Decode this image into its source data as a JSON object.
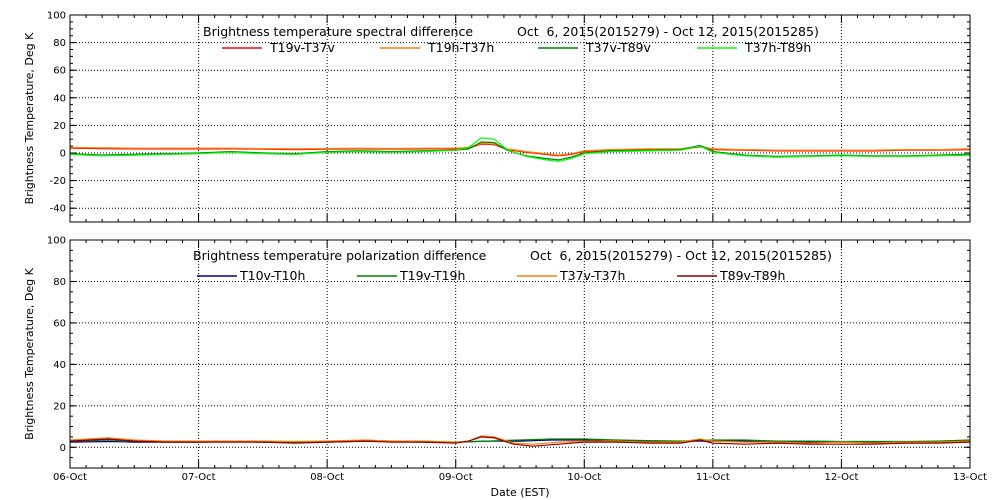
{
  "chart_data": [
    {
      "type": "line",
      "title": "Brightness temperature spectral difference",
      "date_range": "Oct  6, 2015(2015279) - Oct 12, 2015(2015285)",
      "ylabel": "Brightness Temperature, Deg K",
      "xlabel": "",
      "ylim": [
        -50,
        100
      ],
      "yticks": [
        -40,
        -20,
        0,
        20,
        40,
        60,
        80,
        100
      ],
      "xlim": [
        0,
        7
      ],
      "grid": true,
      "legend_placement": "top",
      "series": [
        {
          "name": "T19v-T37v",
          "color": "#ff0000",
          "points": [
            [
              0.0,
              3.5
            ],
            [
              0.25,
              3.2
            ],
            [
              0.5,
              3.0
            ],
            [
              0.75,
              3.0
            ],
            [
              1.0,
              3.0
            ],
            [
              1.25,
              3.0
            ],
            [
              1.5,
              2.8
            ],
            [
              1.75,
              2.5
            ],
            [
              2.0,
              2.8
            ],
            [
              2.25,
              3.0
            ],
            [
              2.5,
              2.8
            ],
            [
              2.75,
              3.0
            ],
            [
              3.0,
              3.0
            ],
            [
              3.1,
              3.5
            ],
            [
              3.2,
              6.5
            ],
            [
              3.3,
              6.0
            ],
            [
              3.4,
              2.5
            ],
            [
              3.55,
              0.5
            ],
            [
              3.7,
              -1.0
            ],
            [
              3.8,
              -2.0
            ],
            [
              3.9,
              -1.0
            ],
            [
              4.0,
              1.0
            ],
            [
              4.2,
              2.0
            ],
            [
              4.5,
              2.5
            ],
            [
              4.75,
              2.5
            ],
            [
              4.9,
              4.5
            ],
            [
              5.0,
              2.5
            ],
            [
              5.25,
              2.0
            ],
            [
              5.5,
              1.5
            ],
            [
              5.75,
              1.5
            ],
            [
              6.0,
              1.5
            ],
            [
              6.25,
              1.5
            ],
            [
              6.5,
              2.0
            ],
            [
              6.75,
              2.0
            ],
            [
              7.0,
              2.5
            ]
          ]
        },
        {
          "name": "T19h-T37h",
          "color": "#ff7f00",
          "points": [
            [
              0.0,
              4.0
            ],
            [
              0.25,
              3.8
            ],
            [
              0.5,
              3.5
            ],
            [
              0.75,
              3.5
            ],
            [
              1.0,
              3.5
            ],
            [
              1.25,
              3.5
            ],
            [
              1.5,
              3.2
            ],
            [
              1.75,
              3.0
            ],
            [
              2.0,
              3.2
            ],
            [
              2.25,
              3.5
            ],
            [
              2.5,
              3.2
            ],
            [
              2.75,
              3.5
            ],
            [
              3.0,
              3.5
            ],
            [
              3.1,
              4.0
            ],
            [
              3.2,
              7.0
            ],
            [
              3.3,
              6.5
            ],
            [
              3.4,
              3.0
            ],
            [
              3.55,
              1.0
            ],
            [
              3.7,
              -0.5
            ],
            [
              3.8,
              -1.5
            ],
            [
              3.9,
              -0.5
            ],
            [
              4.0,
              1.5
            ],
            [
              4.2,
              2.5
            ],
            [
              4.5,
              3.0
            ],
            [
              4.75,
              3.0
            ],
            [
              4.9,
              5.0
            ],
            [
              5.0,
              3.0
            ],
            [
              5.25,
              2.5
            ],
            [
              5.5,
              2.0
            ],
            [
              5.75,
              2.0
            ],
            [
              6.0,
              2.0
            ],
            [
              6.25,
              2.0
            ],
            [
              6.5,
              2.5
            ],
            [
              6.75,
              2.5
            ],
            [
              7.0,
              3.0
            ]
          ]
        },
        {
          "name": "T37v-T89v",
          "color": "#008000",
          "points": [
            [
              0.0,
              -0.5
            ],
            [
              0.25,
              -1.5
            ],
            [
              0.5,
              -1.0
            ],
            [
              0.75,
              -0.5
            ],
            [
              1.0,
              0.0
            ],
            [
              1.25,
              1.0
            ],
            [
              1.5,
              0.0
            ],
            [
              1.75,
              -0.5
            ],
            [
              2.0,
              1.0
            ],
            [
              2.25,
              1.5
            ],
            [
              2.5,
              1.0
            ],
            [
              2.75,
              1.5
            ],
            [
              3.0,
              2.0
            ],
            [
              3.1,
              3.0
            ],
            [
              3.2,
              8.0
            ],
            [
              3.3,
              7.5
            ],
            [
              3.4,
              2.0
            ],
            [
              3.55,
              -2.0
            ],
            [
              3.7,
              -4.0
            ],
            [
              3.8,
              -5.0
            ],
            [
              3.9,
              -3.0
            ],
            [
              4.0,
              0.0
            ],
            [
              4.2,
              1.5
            ],
            [
              4.5,
              2.0
            ],
            [
              4.75,
              2.5
            ],
            [
              4.9,
              5.5
            ],
            [
              5.0,
              1.0
            ],
            [
              5.25,
              -1.5
            ],
            [
              5.5,
              -2.5
            ],
            [
              5.75,
              -2.0
            ],
            [
              6.0,
              -1.5
            ],
            [
              6.25,
              -2.0
            ],
            [
              6.5,
              -2.0
            ],
            [
              6.75,
              -1.5
            ],
            [
              7.0,
              -1.0
            ]
          ]
        },
        {
          "name": "T37h-T89h",
          "color": "#00ff00",
          "points": [
            [
              0.0,
              -1.0
            ],
            [
              0.25,
              -2.0
            ],
            [
              0.5,
              -1.5
            ],
            [
              0.75,
              -1.0
            ],
            [
              1.0,
              -0.5
            ],
            [
              1.25,
              0.5
            ],
            [
              1.5,
              -0.5
            ],
            [
              1.75,
              -1.0
            ],
            [
              2.0,
              0.5
            ],
            [
              2.25,
              1.0
            ],
            [
              2.5,
              0.5
            ],
            [
              2.75,
              1.0
            ],
            [
              3.0,
              2.0
            ],
            [
              3.1,
              4.0
            ],
            [
              3.2,
              11.0
            ],
            [
              3.3,
              10.0
            ],
            [
              3.4,
              2.5
            ],
            [
              3.55,
              -2.5
            ],
            [
              3.7,
              -5.0
            ],
            [
              3.8,
              -6.0
            ],
            [
              3.9,
              -4.0
            ],
            [
              4.0,
              -0.5
            ],
            [
              4.2,
              1.0
            ],
            [
              4.5,
              1.5
            ],
            [
              4.75,
              2.0
            ],
            [
              4.9,
              5.0
            ],
            [
              5.0,
              0.5
            ],
            [
              5.25,
              -2.0
            ],
            [
              5.5,
              -3.0
            ],
            [
              5.75,
              -2.5
            ],
            [
              6.0,
              -2.0
            ],
            [
              6.25,
              -2.5
            ],
            [
              6.5,
              -2.5
            ],
            [
              6.75,
              -2.0
            ],
            [
              7.0,
              -1.5
            ]
          ]
        }
      ]
    },
    {
      "type": "line",
      "title": "Brightness temperature polarization difference",
      "date_range": "Oct  6, 2015(2015279) - Oct 12, 2015(2015285)",
      "ylabel": "Brightness Temperature, Deg K",
      "xlabel": "Date (EST)",
      "ylim": [
        -10,
        100
      ],
      "yticks": [
        0,
        20,
        40,
        60,
        80,
        100
      ],
      "xlim": [
        0,
        7
      ],
      "xticks": [
        "06-Oct",
        "07-Oct",
        "08-Oct",
        "09-Oct",
        "10-Oct",
        "11-Oct",
        "12-Oct",
        "13-Oct"
      ],
      "grid": true,
      "legend_placement": "top",
      "series": [
        {
          "name": "T10v-T10h",
          "color": "#00008b",
          "points": [
            [
              0.0,
              2.5
            ],
            [
              0.3,
              2.8
            ],
            [
              0.5,
              2.5
            ],
            [
              0.75,
              2.5
            ],
            [
              1.0,
              2.5
            ],
            [
              1.25,
              2.8
            ],
            [
              1.5,
              2.5
            ],
            [
              1.75,
              2.5
            ],
            [
              2.0,
              2.5
            ],
            [
              2.3,
              3.0
            ],
            [
              2.5,
              2.8
            ],
            [
              2.75,
              2.5
            ],
            [
              3.0,
              2.5
            ],
            [
              3.25,
              3.0
            ],
            [
              3.5,
              3.0
            ],
            [
              3.75,
              3.5
            ],
            [
              4.0,
              3.5
            ],
            [
              4.25,
              3.0
            ],
            [
              4.5,
              3.0
            ],
            [
              4.75,
              3.0
            ],
            [
              5.0,
              3.0
            ],
            [
              5.25,
              3.0
            ],
            [
              5.5,
              2.8
            ],
            [
              5.75,
              2.5
            ],
            [
              6.0,
              2.5
            ],
            [
              6.25,
              2.5
            ],
            [
              6.5,
              2.5
            ],
            [
              6.75,
              2.8
            ],
            [
              7.0,
              3.0
            ]
          ]
        },
        {
          "name": "T19v-T19h",
          "color": "#008000",
          "points": [
            [
              0.0,
              3.0
            ],
            [
              0.3,
              3.5
            ],
            [
              0.5,
              3.0
            ],
            [
              0.75,
              3.0
            ],
            [
              1.0,
              2.8
            ],
            [
              1.25,
              3.0
            ],
            [
              1.5,
              2.8
            ],
            [
              1.75,
              2.5
            ],
            [
              2.0,
              2.8
            ],
            [
              2.3,
              3.2
            ],
            [
              2.5,
              3.0
            ],
            [
              2.75,
              2.8
            ],
            [
              3.0,
              2.5
            ],
            [
              3.25,
              3.0
            ],
            [
              3.5,
              3.5
            ],
            [
              3.75,
              4.0
            ],
            [
              4.0,
              4.0
            ],
            [
              4.25,
              3.5
            ],
            [
              4.5,
              3.2
            ],
            [
              4.75,
              3.0
            ],
            [
              5.0,
              3.5
            ],
            [
              5.25,
              3.5
            ],
            [
              5.5,
              3.0
            ],
            [
              5.75,
              3.0
            ],
            [
              6.0,
              2.8
            ],
            [
              6.25,
              2.8
            ],
            [
              6.5,
              2.8
            ],
            [
              6.75,
              3.0
            ],
            [
              7.0,
              3.5
            ]
          ]
        },
        {
          "name": "T37v-T37h",
          "color": "#ff7f00",
          "points": [
            [
              0.0,
              3.5
            ],
            [
              0.3,
              4.5
            ],
            [
              0.5,
              3.5
            ],
            [
              0.75,
              3.0
            ],
            [
              1.0,
              3.0
            ],
            [
              1.25,
              3.0
            ],
            [
              1.5,
              3.0
            ],
            [
              1.75,
              2.8
            ],
            [
              2.0,
              3.0
            ],
            [
              2.3,
              3.5
            ],
            [
              2.5,
              3.0
            ],
            [
              2.75,
              3.0
            ],
            [
              3.0,
              2.5
            ],
            [
              3.1,
              3.0
            ],
            [
              3.2,
              5.5
            ],
            [
              3.3,
              5.0
            ],
            [
              3.45,
              2.0
            ],
            [
              3.6,
              1.5
            ],
            [
              3.8,
              2.5
            ],
            [
              4.0,
              3.0
            ],
            [
              4.25,
              3.0
            ],
            [
              4.5,
              2.5
            ],
            [
              4.75,
              2.5
            ],
            [
              4.9,
              4.0
            ],
            [
              5.0,
              3.0
            ],
            [
              5.25,
              2.5
            ],
            [
              5.5,
              2.5
            ],
            [
              5.75,
              2.0
            ],
            [
              6.0,
              2.5
            ],
            [
              6.25,
              2.0
            ],
            [
              6.5,
              2.5
            ],
            [
              6.75,
              2.5
            ],
            [
              7.0,
              3.0
            ]
          ]
        },
        {
          "name": "T89v-T89h",
          "color": "#8b0000",
          "points": [
            [
              0.0,
              3.0
            ],
            [
              0.3,
              4.0
            ],
            [
              0.5,
              3.0
            ],
            [
              0.75,
              2.5
            ],
            [
              1.0,
              2.5
            ],
            [
              1.25,
              2.5
            ],
            [
              1.5,
              2.5
            ],
            [
              1.75,
              2.0
            ],
            [
              2.0,
              2.5
            ],
            [
              2.3,
              3.0
            ],
            [
              2.5,
              2.5
            ],
            [
              2.75,
              2.5
            ],
            [
              3.0,
              2.0
            ],
            [
              3.1,
              3.0
            ],
            [
              3.2,
              5.0
            ],
            [
              3.3,
              4.5
            ],
            [
              3.45,
              1.5
            ],
            [
              3.6,
              0.5
            ],
            [
              3.8,
              1.5
            ],
            [
              4.0,
              2.5
            ],
            [
              4.25,
              2.5
            ],
            [
              4.5,
              2.0
            ],
            [
              4.75,
              2.0
            ],
            [
              4.9,
              3.5
            ],
            [
              5.0,
              2.0
            ],
            [
              5.25,
              1.5
            ],
            [
              5.5,
              2.0
            ],
            [
              5.75,
              1.5
            ],
            [
              6.0,
              1.5
            ],
            [
              6.25,
              1.5
            ],
            [
              6.5,
              2.0
            ],
            [
              6.75,
              2.0
            ],
            [
              7.0,
              2.5
            ]
          ]
        }
      ]
    }
  ]
}
